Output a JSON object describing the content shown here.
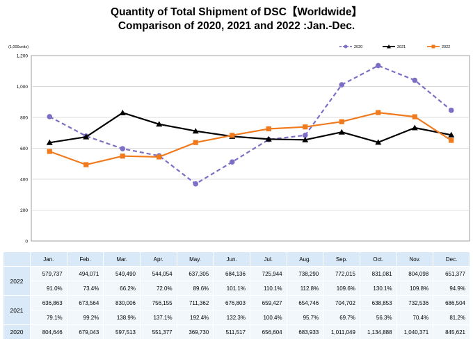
{
  "chart_data": {
    "type": "line",
    "title": "Quantity of Total Shipment of DSC【Worldwide】",
    "subtitle": "Comparison of 2020, 2021 and 2022 :Jan.-Dec.",
    "unit_label": "(1,000units)",
    "categories": [
      "Jan.",
      "Feb.",
      "Mar.",
      "Apr.",
      "May.",
      "Jun.",
      "Jul.",
      "Aug.",
      "Sep.",
      "Oct.",
      "Nov.",
      "Dec."
    ],
    "ylim": [
      0,
      1200
    ],
    "yticks": [
      "0",
      "200",
      "400",
      "600",
      "800",
      "1,000",
      "1,200"
    ],
    "ytick_values": [
      0,
      200,
      400,
      600,
      800,
      1000,
      1200
    ],
    "legend_position": "top-right",
    "grid": "horizontal",
    "series": [
      {
        "name": "2020",
        "color": "#7b6fc6",
        "style": "dashed",
        "marker": "circle",
        "values": [
          804.646,
          679.043,
          597.513,
          551.377,
          369.73,
          511.517,
          656.604,
          683.933,
          1011.049,
          1134.888,
          1040.371,
          845.621
        ]
      },
      {
        "name": "2021",
        "color": "#000000",
        "style": "solid",
        "marker": "triangle",
        "values": [
          636.863,
          673.564,
          830.006,
          756.155,
          711.362,
          676.803,
          659.427,
          654.746,
          704.702,
          638.853,
          732.536,
          686.504
        ]
      },
      {
        "name": "2022",
        "color": "#f07a1e",
        "style": "solid",
        "marker": "square",
        "values": [
          579.737,
          494.071,
          549.49,
          544.054,
          637.305,
          684.136,
          725.944,
          738.29,
          772.015,
          831.081,
          804.098,
          651.377
        ]
      }
    ]
  },
  "table": {
    "months": [
      "Jan.",
      "Feb.",
      "Mar.",
      "Apr.",
      "May.",
      "Jun.",
      "Jul.",
      "Aug.",
      "Sep.",
      "Oct.",
      "Nov.",
      "Dec."
    ],
    "rows": [
      {
        "year": "2022",
        "values": [
          "579,737",
          "494,071",
          "549,490",
          "544,054",
          "637,305",
          "684,136",
          "725,944",
          "738,290",
          "772,015",
          "831,081",
          "804,098",
          "651,377"
        ],
        "pct": [
          "91.0%",
          "73.4%",
          "66.2%",
          "72.0%",
          "89.6%",
          "101.1%",
          "110.1%",
          "112.8%",
          "109.6%",
          "130.1%",
          "109.8%",
          "94.9%"
        ]
      },
      {
        "year": "2021",
        "values": [
          "636,863",
          "673,564",
          "830,006",
          "756,155",
          "711,362",
          "676,803",
          "659,427",
          "654,746",
          "704,702",
          "638,853",
          "732,536",
          "686,504"
        ],
        "pct": [
          "79.1%",
          "99.2%",
          "138.9%",
          "137.1%",
          "192.4%",
          "132.3%",
          "100.4%",
          "95.7%",
          "69.7%",
          "56.3%",
          "70.4%",
          "81.2%"
        ]
      },
      {
        "year": "2020",
        "values": [
          "804,646",
          "679,043",
          "597,513",
          "551,377",
          "369,730",
          "511,517",
          "656,604",
          "683,933",
          "1,011,049",
          "1,134,888",
          "1,040,371",
          "845,621"
        ]
      }
    ]
  }
}
